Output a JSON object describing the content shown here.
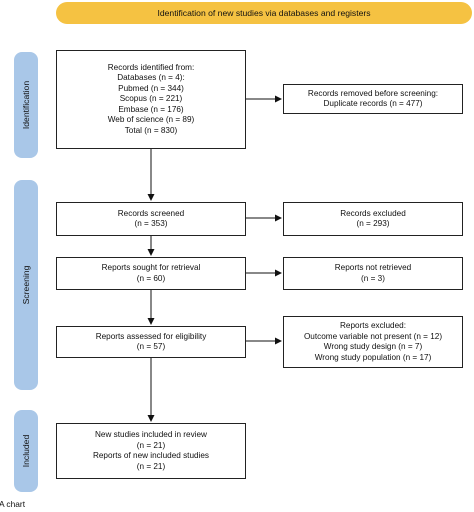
{
  "header": {
    "title": "Identification of new studies via databases and registers"
  },
  "phases": {
    "identification": "Identification",
    "screening": "Screening",
    "included": "Included"
  },
  "boxes": {
    "records_identified": [
      "Records identified from:",
      "Databases (n = 4):",
      "Pubmed (n = 344)",
      "Scopus (n = 221)",
      "Embase (n = 176)",
      "Web of science (n = 89)",
      "Total (n = 830)"
    ],
    "records_removed": [
      "Records removed before screening:",
      "Duplicate records (n = 477)"
    ],
    "records_screened": [
      "Records screened",
      "(n = 353)"
    ],
    "records_excluded": [
      "Records excluded",
      "(n = 293)"
    ],
    "reports_sought": [
      "Reports sought for retrieval",
      "(n = 60)"
    ],
    "reports_not_retrieved": [
      "Reports not retrieved",
      "(n = 3)"
    ],
    "reports_assessed": [
      "Reports assessed for eligibility",
      "(n = 57)"
    ],
    "reports_excluded": [
      "Reports excluded:",
      "Outcome variable not present (n = 12)",
      "Wrong study design (n = 7)",
      "Wrong study population (n = 17)"
    ],
    "included": [
      "New studies included in review",
      "(n = 21)",
      "Reports of new included studies",
      "(n = 21)"
    ]
  },
  "caption": "MA chart"
}
